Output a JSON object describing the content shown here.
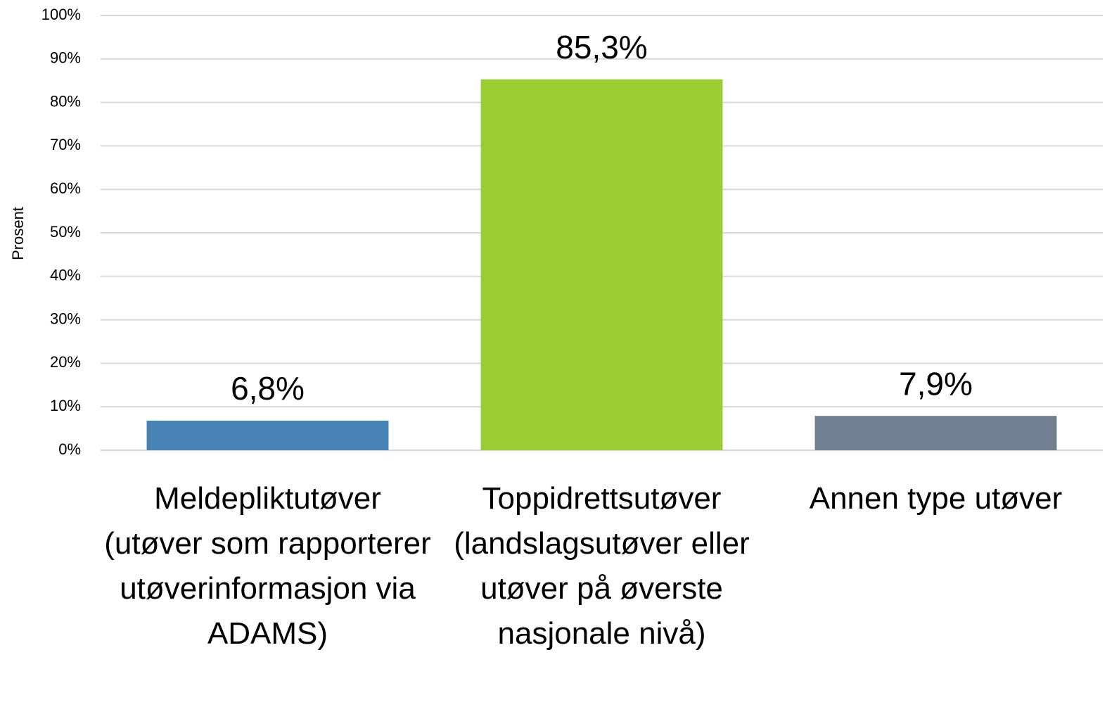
{
  "chart_data": {
    "type": "bar",
    "y_label": "Prosent",
    "categories": [
      "Meldepliktutøver (utøver som rapporterer utøverinformasjon via ADAMS)",
      "Toppidrettsutøver (landslagsutøver eller utøver på øverste nasjonale nivå)",
      "Annen type utøver"
    ],
    "values": [
      6.8,
      85.3,
      7.9
    ],
    "value_labels": [
      "6,8%",
      "85,3%",
      "7,9%"
    ],
    "colors": [
      "#4682b4",
      "#9acd32",
      "#708090"
    ],
    "ylim": [
      0,
      100
    ],
    "yticks": [
      {
        "value": 0,
        "label": "0%"
      },
      {
        "value": 10,
        "label": "10%"
      },
      {
        "value": 20,
        "label": "20%"
      },
      {
        "value": 30,
        "label": "30%"
      },
      {
        "value": 40,
        "label": "40%"
      },
      {
        "value": 50,
        "label": "50%"
      },
      {
        "value": 60,
        "label": "60%"
      },
      {
        "value": 70,
        "label": "70%"
      },
      {
        "value": 80,
        "label": "80%"
      },
      {
        "value": 90,
        "label": "90%"
      },
      {
        "value": 100,
        "label": "100%"
      }
    ],
    "grid": true
  }
}
